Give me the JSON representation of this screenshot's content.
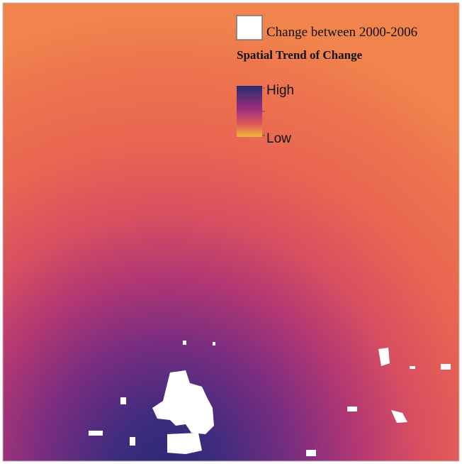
{
  "legend": {
    "change_label": "Change between 2000-2006",
    "trend_title": "Spatial Trend of Change",
    "high_label": "High",
    "low_label": "Low"
  }
}
